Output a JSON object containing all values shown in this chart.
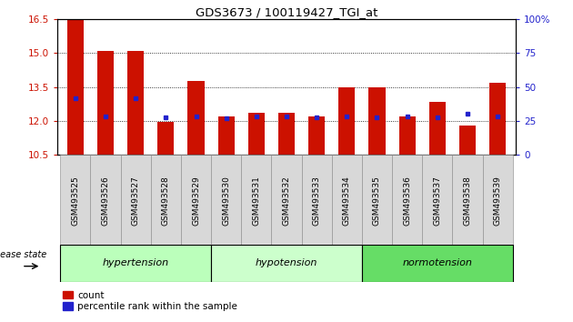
{
  "title": "GDS3673 / 100119427_TGI_at",
  "samples": [
    "GSM493525",
    "GSM493526",
    "GSM493527",
    "GSM493528",
    "GSM493529",
    "GSM493530",
    "GSM493531",
    "GSM493532",
    "GSM493533",
    "GSM493534",
    "GSM493535",
    "GSM493536",
    "GSM493537",
    "GSM493538",
    "GSM493539"
  ],
  "count_values": [
    16.5,
    15.1,
    15.1,
    11.95,
    13.75,
    12.2,
    12.35,
    12.35,
    12.2,
    13.5,
    13.5,
    12.2,
    12.85,
    11.8,
    13.7
  ],
  "percentile_values": [
    13.0,
    12.2,
    13.0,
    12.15,
    12.2,
    12.1,
    12.2,
    12.2,
    12.15,
    12.2,
    12.15,
    12.2,
    12.15,
    12.3,
    12.2
  ],
  "groups": [
    {
      "label": "hypertension",
      "indices": [
        0,
        1,
        2,
        3,
        4
      ],
      "color": "#bbffbb"
    },
    {
      "label": "hypotension",
      "indices": [
        5,
        6,
        7,
        8,
        9
      ],
      "color": "#ccffcc"
    },
    {
      "label": "normotension",
      "indices": [
        10,
        11,
        12,
        13,
        14
      ],
      "color": "#66dd66"
    }
  ],
  "ylim_left": [
    10.5,
    16.5
  ],
  "ylim_right": [
    0,
    100
  ],
  "yticks_left": [
    10.5,
    12.0,
    13.5,
    15.0,
    16.5
  ],
  "yticks_right": [
    0,
    25,
    50,
    75,
    100
  ],
  "bar_color": "#cc1100",
  "dot_color": "#2222cc",
  "bar_width": 0.55,
  "background_color": "#ffffff",
  "tick_label_color_left": "#cc1100",
  "tick_label_color_right": "#2222cc",
  "legend_count_label": "count",
  "legend_pct_label": "percentile rank within the sample",
  "disease_state_label": "disease state"
}
